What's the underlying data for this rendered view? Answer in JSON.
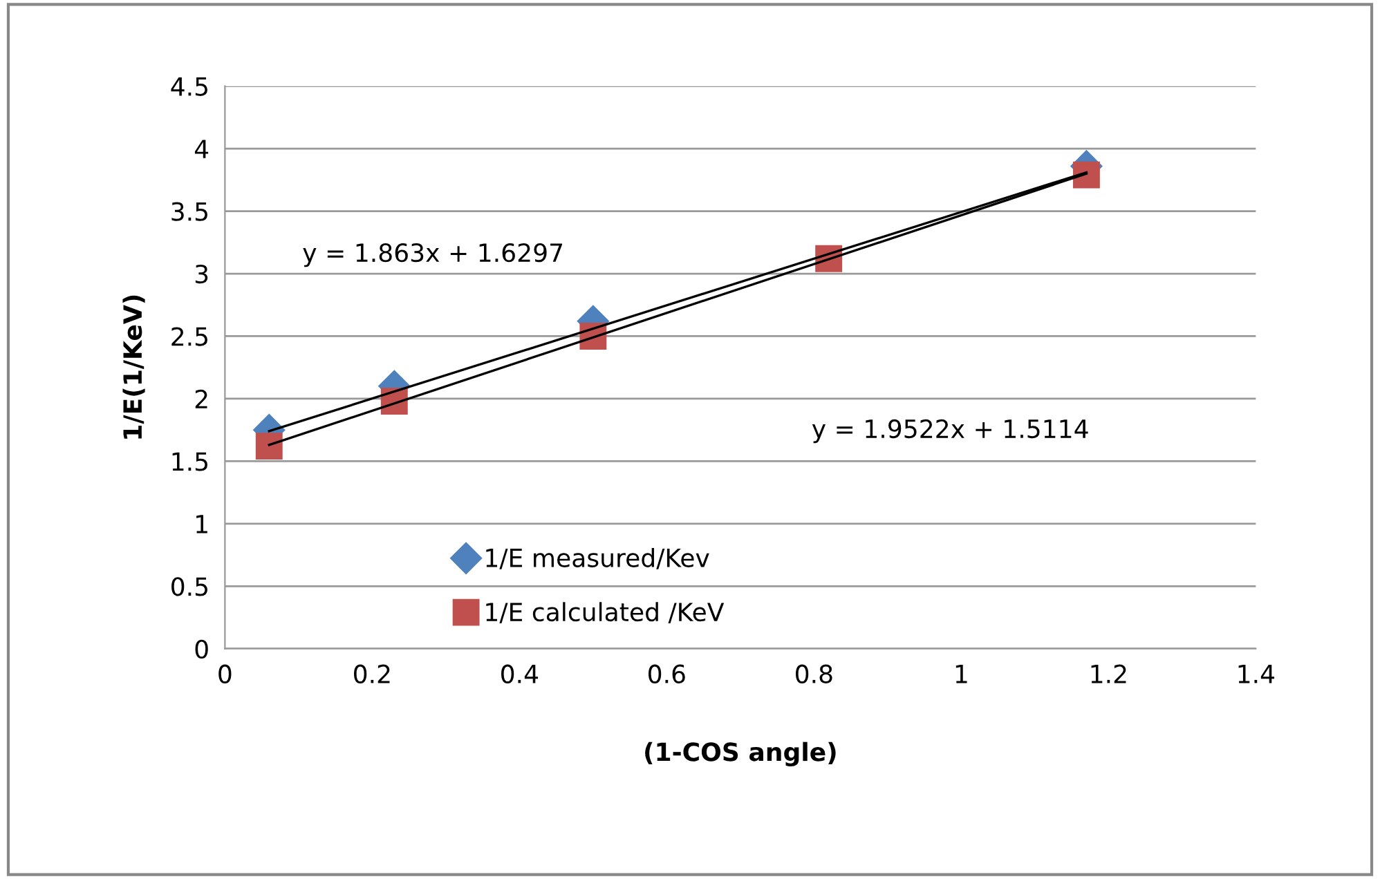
{
  "chart_data": {
    "type": "scatter",
    "xlabel": "(1-COS angle)",
    "ylabel": "1/E(1/KeV)",
    "series": [
      {
        "name": "1/E measured/Kev",
        "color": "#4f81bd",
        "marker": "diamond",
        "x": [
          0.06,
          0.23,
          0.5,
          0.82,
          1.17
        ],
        "values": [
          1.75,
          2.1,
          2.62,
          null,
          3.86
        ]
      },
      {
        "name": "1/E calculated /KeV",
        "color": "#c0504d",
        "marker": "square",
        "x": [
          0.06,
          0.23,
          0.5,
          0.82,
          1.17
        ],
        "values": [
          1.62,
          1.98,
          2.5,
          3.12,
          3.79
        ]
      },
      {
        "type": "line",
        "color": "#000000",
        "marker": "none",
        "x": [
          0.06,
          1.17
        ],
        "values": [
          1.74,
          3.81
        ]
      },
      {
        "type": "line",
        "color": "#000000",
        "marker": "none",
        "x": [
          0.06,
          1.17
        ],
        "values": [
          1.63,
          3.8
        ]
      }
    ],
    "annotations": [
      "y = 1.863x + 1.6297",
      "y = 1.9522x + 1.5114"
    ],
    "xlim": [
      0,
      1.4
    ],
    "xticks": [
      0,
      0.2,
      0.4,
      0.6,
      0.8,
      1,
      1.2,
      1.4
    ],
    "ylim": [
      0,
      4.5
    ],
    "yticks": [
      0,
      0.5,
      1,
      1.5,
      2,
      2.5,
      3,
      3.5,
      4,
      4.5
    ],
    "grid": "y",
    "legend": "bottom left"
  }
}
